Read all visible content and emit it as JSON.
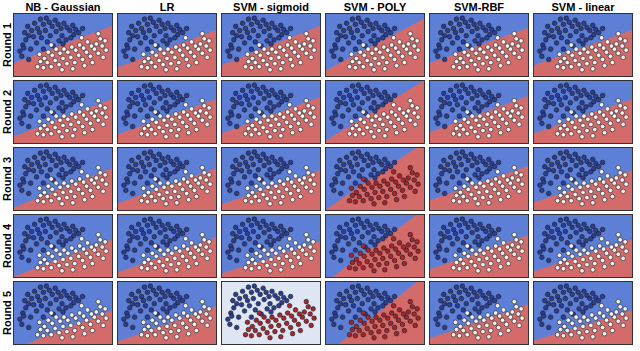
{
  "chart_data": {
    "type": "scatter",
    "tick_labels": false,
    "columns": [
      "NB - Gaussian",
      "LR",
      "SVM - sigmoid",
      "SVM - POLY",
      "SVM-RBF",
      "SVM - linear"
    ],
    "rows": [
      "Round 1",
      "Round 2",
      "Round 3",
      "Round 4",
      "Round 5"
    ],
    "xlim": [
      0,
      10
    ],
    "ylim": [
      0,
      6
    ],
    "colors": [
      "#5d7fd6",
      "#d46b6b"
    ],
    "series": [
      {
        "color": "#2c3f96",
        "x": [
          0.6,
          0.9,
          1.2,
          1.0,
          1.5,
          1.8,
          1.4,
          2.1,
          2.4,
          2.7,
          3.0,
          3.3,
          3.6,
          3.9,
          4.2,
          4.5,
          4.8,
          5.1,
          5.4,
          5.7,
          6.0,
          6.3,
          6.1,
          5.8,
          2.0,
          2.6,
          3.2,
          3.7,
          4.3,
          4.9,
          5.3,
          5.0,
          4.6,
          3.4,
          2.3,
          1.7,
          6.6,
          7.0,
          4.0,
          3.0,
          2.8,
          1.1,
          0.8,
          1.5
        ],
        "y": [
          2.4,
          3.0,
          3.5,
          2.7,
          3.9,
          4.4,
          4.8,
          5.1,
          4.6,
          5.5,
          5.0,
          5.6,
          5.2,
          4.8,
          5.4,
          5.0,
          4.6,
          5.1,
          4.7,
          4.4,
          4.9,
          4.5,
          4.0,
          3.7,
          3.8,
          4.2,
          4.4,
          3.9,
          4.3,
          3.9,
          3.5,
          3.1,
          3.4,
          3.3,
          3.2,
          2.6,
          4.2,
          4.6,
          2.9,
          2.6,
          3.7,
          4.2,
          1.9,
          1.6
        ]
      },
      {
        "color": "#f3f1f1",
        "x": [
          3.0,
          3.4,
          3.8,
          4.2,
          4.6,
          5.0,
          5.4,
          5.8,
          6.2,
          6.6,
          7.0,
          7.4,
          7.8,
          8.2,
          8.6,
          9.0,
          9.3,
          8.8,
          9.4,
          8.4,
          7.9,
          7.5,
          7.1,
          6.7,
          6.3,
          5.9,
          5.5,
          5.1,
          4.7,
          4.3,
          3.9,
          3.5,
          3.1,
          2.7,
          2.4,
          4.9,
          6.0,
          7.2,
          8.0,
          9.1,
          2.6,
          3.8,
          6.9,
          8.6
        ],
        "y": [
          0.8,
          1.3,
          0.9,
          1.5,
          1.1,
          1.7,
          1.2,
          1.8,
          1.3,
          2.0,
          1.6,
          2.3,
          1.9,
          2.6,
          2.2,
          2.9,
          3.4,
          3.6,
          2.5,
          3.1,
          2.9,
          3.3,
          2.7,
          3.0,
          2.5,
          2.8,
          2.3,
          2.6,
          2.2,
          2.6,
          2.0,
          2.3,
          1.7,
          1.4,
          0.9,
          0.6,
          0.7,
          1.0,
          1.3,
          1.8,
          2.1,
          3.0,
          3.7,
          4.1
        ]
      }
    ],
    "panels": [
      [
        {
          "boundary_y": [
            1.2,
            4.8
          ]
        },
        {
          "boundary_y": [
            0.8,
            4.4
          ]
        },
        {
          "boundary_y": [
            1.0,
            4.8
          ]
        },
        {
          "boundary_y": [
            0.5,
            5.5
          ]
        },
        {
          "boundary_y": [
            1.2,
            4.6
          ]
        },
        {
          "boundary_y": [
            1.0,
            4.4
          ]
        }
      ],
      [
        {
          "boundary_y": [
            0.6,
            4.2
          ]
        },
        {
          "boundary_y": [
            0.8,
            4.2
          ]
        },
        {
          "boundary_y": [
            0.9,
            4.4
          ]
        },
        {
          "boundary_y": [
            0.2,
            6.0
          ]
        },
        {
          "boundary_y": [
            1.0,
            4.5
          ]
        },
        {
          "boundary_y": [
            0.9,
            4.2
          ]
        }
      ],
      [
        {
          "boundary_y": [
            0.2,
            4.0
          ]
        },
        {
          "boundary_y": [
            0.6,
            4.0
          ]
        },
        {
          "boundary_y": [
            0.5,
            3.8
          ]
        },
        {
          "boundary_y": [
            0.0,
            6.5
          ],
          "color": "#a8262e"
        },
        {
          "boundary_y": [
            0.9,
            4.2
          ]
        },
        {
          "boundary_y": [
            0.7,
            3.8
          ]
        }
      ],
      [
        {
          "boundary_y": [
            0.0,
            3.6
          ]
        },
        {
          "boundary_y": [
            0.4,
            3.8
          ]
        },
        {
          "boundary_y": [
            0.3,
            3.4
          ]
        },
        {
          "boundary_y": [
            -0.5,
            6.5
          ],
          "color": "#a8262e"
        },
        {
          "boundary_y": [
            0.7,
            4.0
          ]
        },
        {
          "boundary_y": [
            0.5,
            3.6
          ]
        }
      ],
      [
        {
          "boundary_y": [
            -0.5,
            3.2
          ]
        },
        {
          "boundary_y": [
            0.2,
            3.6
          ]
        },
        {
          "boundary_y": [
            -1.0,
            -1.0
          ],
          "color": "#a8262e",
          "colors": [
            "#dfe6f3",
            "#dfe6f3"
          ]
        },
        {
          "boundary_y": [
            -1.0,
            6.5
          ],
          "color": "#a8262e"
        },
        {
          "boundary_y": [
            0.5,
            3.8
          ]
        },
        {
          "boundary_y": [
            0.3,
            3.2
          ]
        }
      ]
    ]
  }
}
